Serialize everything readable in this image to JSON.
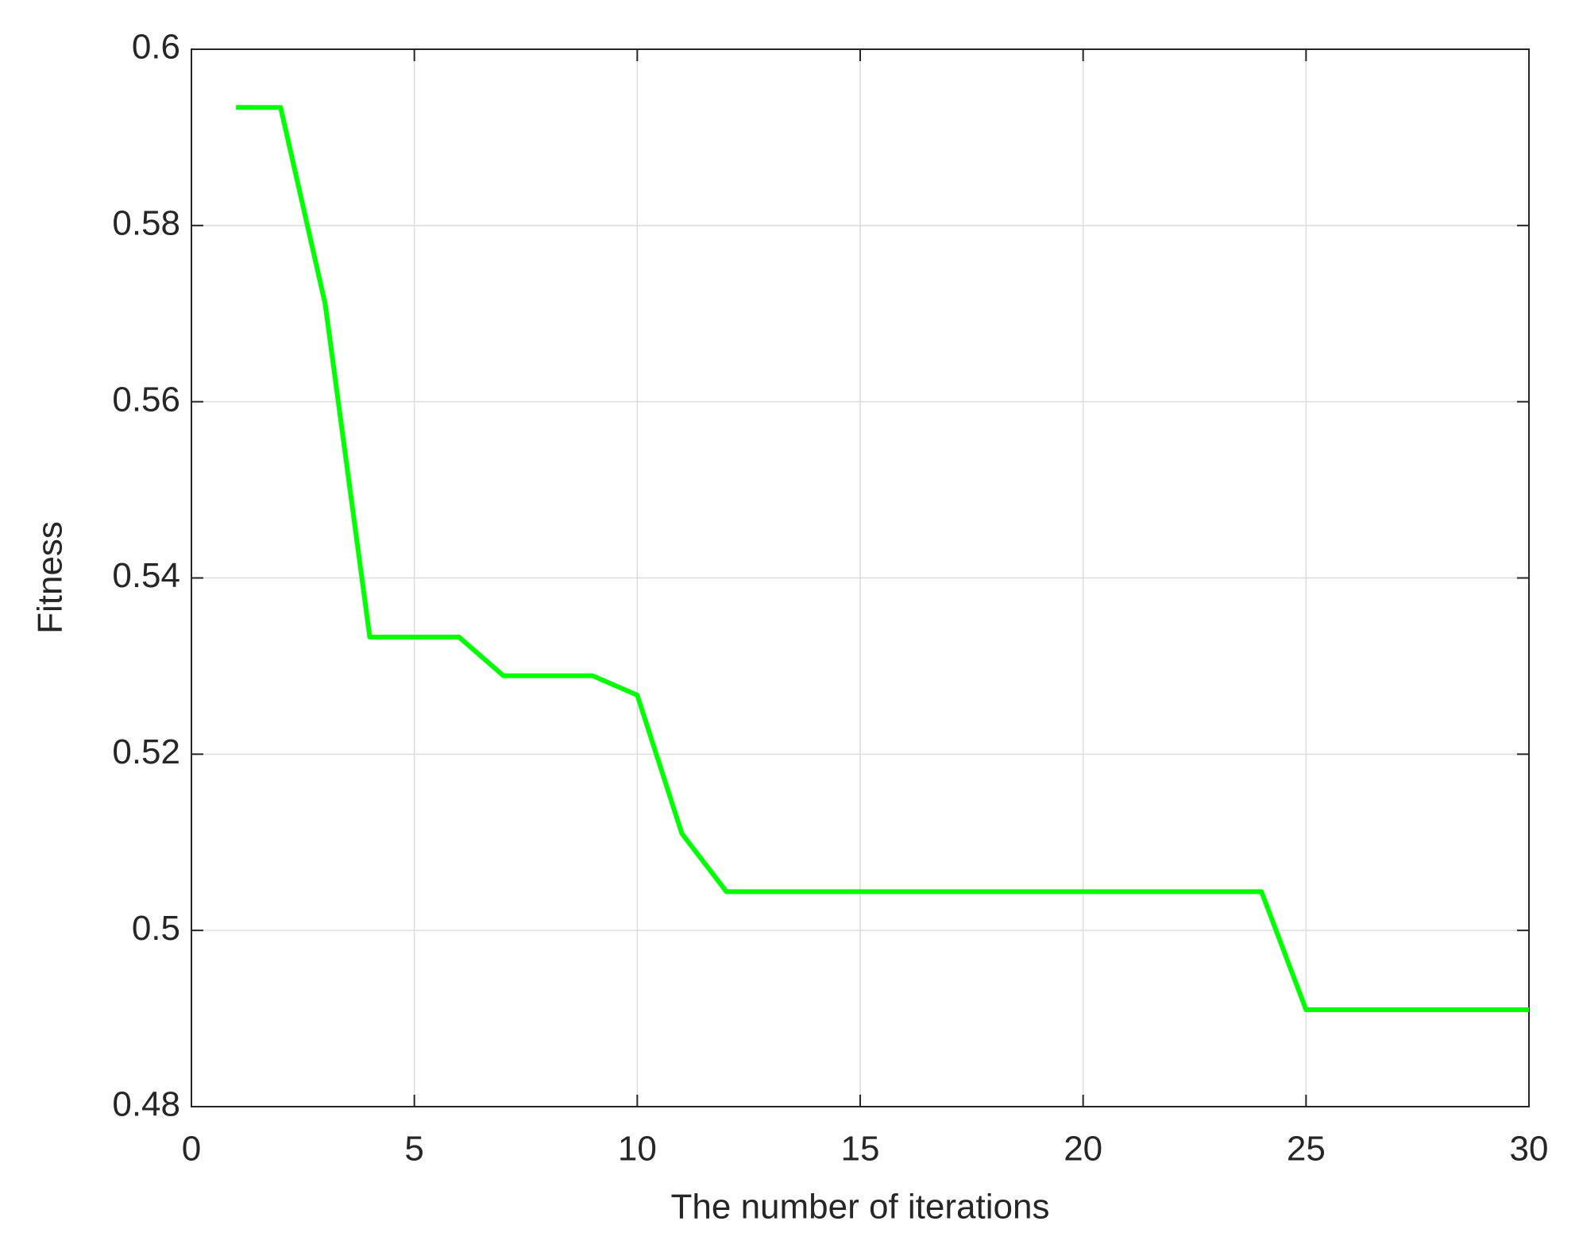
{
  "chart_data": {
    "type": "line",
    "x_label": "The number of iterations",
    "y_label": "Fitness",
    "x": [
      1,
      2,
      3,
      4,
      5,
      6,
      7,
      8,
      9,
      10,
      11,
      12,
      13,
      14,
      15,
      16,
      17,
      18,
      19,
      20,
      21,
      22,
      23,
      24,
      25,
      26,
      27,
      28,
      29,
      30
    ],
    "series": [
      {
        "color": "#00ff00",
        "values": [
          0.5934,
          0.5934,
          0.5711,
          0.5333,
          0.5333,
          0.5333,
          0.5289,
          0.5289,
          0.5289,
          0.5267,
          0.511,
          0.5044,
          0.5044,
          0.5044,
          0.5044,
          0.5044,
          0.5044,
          0.5044,
          0.5044,
          0.5044,
          0.5044,
          0.5044,
          0.5044,
          0.5044,
          0.491,
          0.491,
          0.491,
          0.491,
          0.491,
          0.491
        ]
      }
    ],
    "xlim": [
      0,
      30
    ],
    "xticks": [
      0,
      5,
      10,
      15,
      20,
      25,
      30
    ],
    "ylim": [
      0.48,
      0.6
    ],
    "yticks": [
      0.48,
      0.5,
      0.52,
      0.54,
      0.56,
      0.58,
      0.6
    ],
    "grid": true
  }
}
